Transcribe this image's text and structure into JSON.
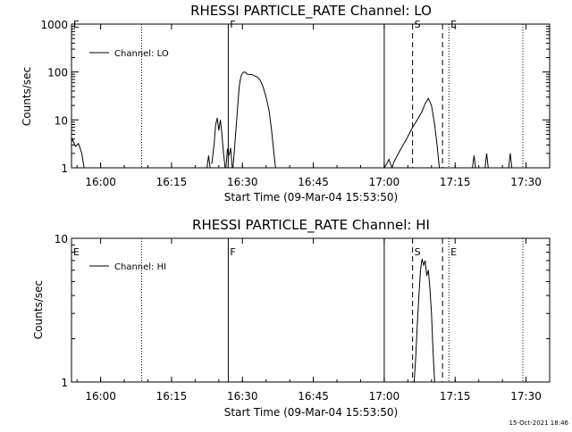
{
  "footer": {
    "timestamp": "15-Oct-2021 18:46"
  },
  "chart_data": [
    {
      "type": "line",
      "title": "RHESSI PARTICLE_RATE Channel: LO",
      "xlabel": "Start Time (09-Mar-04 15:53:50)",
      "ylabel": "Counts/sec",
      "y_scale": "log",
      "ylim": [
        1,
        1000
      ],
      "xlim": [
        "15:53:50",
        "17:35:00"
      ],
      "x_tick_labels": [
        "16:00",
        "16:15",
        "16:30",
        "16:45",
        "17:00",
        "17:15",
        "17:30"
      ],
      "y_tick_labels": [
        "1",
        "10",
        "100",
        "1000"
      ],
      "grid": false,
      "legend": {
        "position": "top-left",
        "entries": [
          "Channel: LO"
        ]
      },
      "markers": [
        {
          "label": "E",
          "time": "15:53:50",
          "style": "dotted"
        },
        {
          "label": "",
          "time": "16:08:40",
          "style": "dotted"
        },
        {
          "label": "F",
          "time": "16:27:00",
          "style": "solid"
        },
        {
          "label": "",
          "time": "17:00:00",
          "style": "solid"
        },
        {
          "label": "S",
          "time": "17:06:00",
          "style": "dashed"
        },
        {
          "label": "",
          "time": "17:12:20",
          "style": "dashed"
        },
        {
          "label": "E",
          "time": "17:13:40",
          "style": "dotted"
        },
        {
          "label": "",
          "time": "17:29:20",
          "style": "dotted"
        }
      ],
      "series": [
        {
          "name": "Channel: LO",
          "segments": [
            {
              "x": [
                "15:53:50",
                "15:54:00",
                "15:54:40",
                "15:55:20",
                "15:56:00",
                "15:56:30"
              ],
              "y": [
                3.5,
                4.0,
                2.8,
                3.2,
                2.0,
                1.0
              ]
            },
            {
              "x": [
                "16:22:30",
                "16:22:50",
                "16:23:10"
              ],
              "y": [
                1.0,
                1.8,
                1.0
              ]
            },
            {
              "x": [
                "16:23:30",
                "16:24:00",
                "16:24:20",
                "16:24:40",
                "16:25:00",
                "16:25:20",
                "16:25:40",
                "16:26:00",
                "16:26:20"
              ],
              "y": [
                1.2,
                3.0,
                8.0,
                11.0,
                6.0,
                10.0,
                5.0,
                2.0,
                1.0
              ]
            },
            {
              "x": [
                "16:26:30",
                "16:26:50",
                "16:27:10",
                "16:27:30",
                "16:27:50"
              ],
              "y": [
                1.0,
                2.5,
                1.8,
                2.6,
                1.0
              ]
            },
            {
              "x": [
                "16:28:00",
                "16:28:20",
                "16:28:40",
                "16:29:00",
                "16:29:20",
                "16:29:40",
                "16:30:00",
                "16:30:20",
                "16:30:40",
                "16:31:00",
                "16:32:00",
                "16:33:00",
                "16:33:40",
                "16:34:20",
                "16:35:00",
                "16:35:40",
                "16:36:10",
                "16:36:40",
                "16:37:00"
              ],
              "y": [
                1.0,
                2.5,
                7.0,
                20.0,
                50.0,
                80.0,
                95.0,
                100.0,
                98.0,
                90.0,
                88.0,
                80.0,
                70.0,
                50.0,
                30.0,
                15.0,
                6.0,
                2.0,
                1.0
              ]
            },
            {
              "x": [
                "17:00:00",
                "17:00:30",
                "17:01:00",
                "17:01:20",
                "17:01:40"
              ],
              "y": [
                1.0,
                1.2,
                1.5,
                1.2,
                1.0
              ]
            },
            {
              "x": [
                "17:01:40",
                "17:02:00",
                "17:03:00",
                "17:04:00",
                "17:05:00",
                "17:06:00",
                "17:07:00",
                "17:08:00",
                "17:08:40",
                "17:09:20",
                "17:10:00",
                "17:10:40",
                "17:11:10",
                "17:11:40"
              ],
              "y": [
                1.0,
                1.3,
                2.0,
                3.0,
                4.5,
                7.0,
                10.0,
                15.0,
                22.0,
                28.0,
                20.0,
                8.0,
                3.0,
                1.0
              ]
            },
            {
              "x": [
                "17:18:40",
                "17:19:00",
                "17:19:20"
              ],
              "y": [
                1.0,
                1.8,
                1.0
              ]
            },
            {
              "x": [
                "17:21:20",
                "17:21:40",
                "17:22:00"
              ],
              "y": [
                1.0,
                2.0,
                1.0
              ]
            },
            {
              "x": [
                "17:26:20",
                "17:26:40",
                "17:27:00"
              ],
              "y": [
                1.0,
                2.0,
                1.0
              ]
            }
          ]
        }
      ]
    },
    {
      "type": "line",
      "title": "RHESSI PARTICLE_RATE Channel: HI",
      "xlabel": "Start Time (09-Mar-04 15:53:50)",
      "ylabel": "Counts/sec",
      "y_scale": "log",
      "ylim": [
        1,
        10
      ],
      "xlim": [
        "15:53:50",
        "17:35:00"
      ],
      "x_tick_labels": [
        "16:00",
        "16:15",
        "16:30",
        "16:45",
        "17:00",
        "17:15",
        "17:30"
      ],
      "y_tick_labels": [
        "1",
        "10"
      ],
      "grid": false,
      "legend": {
        "position": "top-left",
        "entries": [
          "Channel: HI"
        ]
      },
      "markers": [
        {
          "label": "E",
          "time": "15:53:50",
          "style": "dotted"
        },
        {
          "label": "",
          "time": "16:08:40",
          "style": "dotted"
        },
        {
          "label": "F",
          "time": "16:27:00",
          "style": "solid"
        },
        {
          "label": "",
          "time": "17:00:00",
          "style": "solid"
        },
        {
          "label": "S",
          "time": "17:06:00",
          "style": "dashed"
        },
        {
          "label": "",
          "time": "17:12:20",
          "style": "dashed"
        },
        {
          "label": "E",
          "time": "17:13:40",
          "style": "dotted"
        },
        {
          "label": "",
          "time": "17:29:20",
          "style": "dotted"
        }
      ],
      "series": [
        {
          "name": "Channel: HI",
          "segments": [
            {
              "x": [
                "17:06:20",
                "17:06:40",
                "17:07:00",
                "17:07:20",
                "17:07:40",
                "17:08:00",
                "17:08:20",
                "17:08:40",
                "17:09:00",
                "17:09:20",
                "17:09:40",
                "17:10:00",
                "17:10:20",
                "17:10:40"
              ],
              "y": [
                1.0,
                1.5,
                2.5,
                4.0,
                6.0,
                7.2,
                6.5,
                7.0,
                5.5,
                6.0,
                4.5,
                3.0,
                1.6,
                1.0
              ]
            }
          ]
        }
      ]
    }
  ]
}
